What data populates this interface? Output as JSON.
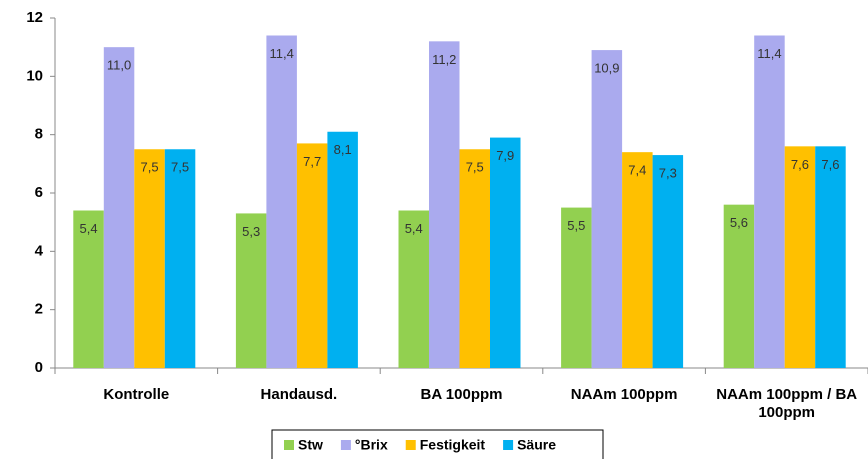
{
  "chart_data": {
    "type": "bar",
    "categories": [
      "Kontrolle",
      "Handausd.",
      "BA 100ppm",
      "NAAm 100ppm",
      "NAAm 100ppm / BA 100ppm"
    ],
    "series": [
      {
        "name": "Stw",
        "color": "#92d050",
        "values": [
          5.4,
          5.3,
          5.4,
          5.5,
          5.6
        ],
        "value_labels": [
          "5,4",
          "5,3",
          "5,4",
          "5,5",
          "5,6"
        ]
      },
      {
        "name": "°Brix",
        "color": "#aaaaee",
        "values": [
          11.0,
          11.4,
          11.2,
          10.9,
          11.4
        ],
        "value_labels": [
          "11,0",
          "11,4",
          "11,2",
          "10,9",
          "11,4"
        ]
      },
      {
        "name": "Festigkeit",
        "color": "#ffc000",
        "values": [
          7.5,
          7.7,
          7.5,
          7.4,
          7.6
        ],
        "value_labels": [
          "7,5",
          "7,7",
          "7,5",
          "7,4",
          "7,6"
        ]
      },
      {
        "name": "Säure",
        "color": "#00b0f0",
        "values": [
          7.5,
          8.1,
          7.9,
          7.3,
          7.6
        ],
        "value_labels": [
          "7,5",
          "8,1",
          "7,9",
          "7,3",
          "7,6"
        ]
      }
    ],
    "ylim": [
      0,
      12
    ],
    "yticks": [
      0,
      2,
      4,
      6,
      8,
      10,
      12
    ],
    "grid": false
  }
}
